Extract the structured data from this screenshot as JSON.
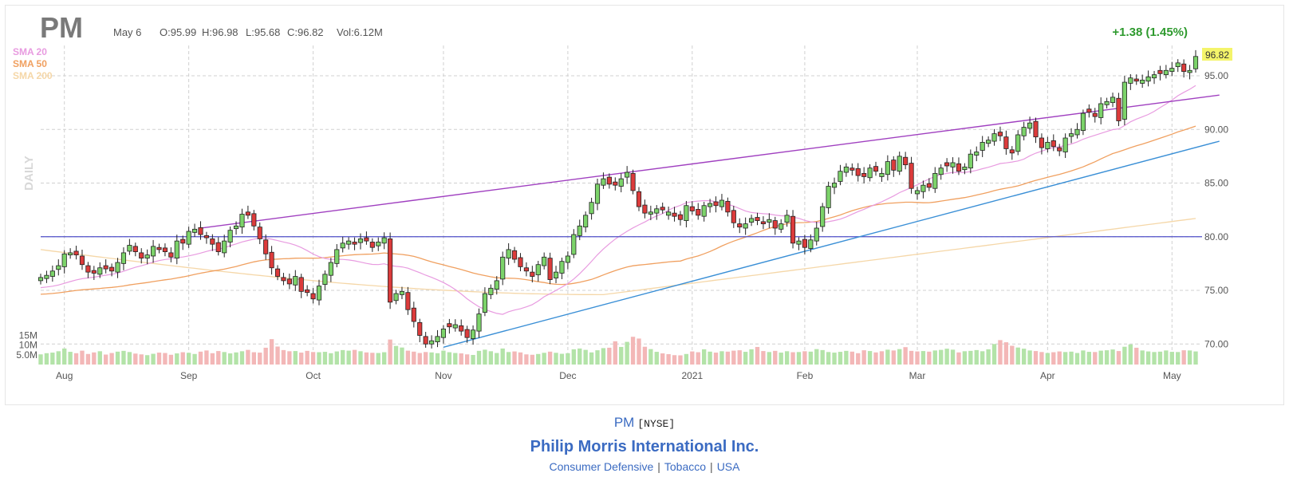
{
  "header": {
    "ticker": "PM",
    "date": "May 6",
    "open": "O:95.99",
    "high": "H:96.98",
    "low": "L:95.68",
    "close": "C:96.82",
    "volume": "Vol:6.12M",
    "change": "+1.38 (1.45%)",
    "period_label": "DAILY"
  },
  "legend": [
    {
      "label": "SMA 20",
      "color": "#e89be0"
    },
    {
      "label": "SMA 50",
      "color": "#f0a060"
    },
    {
      "label": "SMA 200",
      "color": "#f5d7a8"
    }
  ],
  "last_price_label": "96.82",
  "footer": {
    "ticker": "PM",
    "exchange": "[NYSE]",
    "company": "Philip Morris International Inc.",
    "sector": "Consumer Defensive",
    "industry": "Tobacco",
    "country": "USA"
  },
  "colors": {
    "up": "#7cd36a",
    "down": "#dc3b3b",
    "vol_up": "#b3e3a8",
    "vol_down": "#f3b7b7",
    "change": "#2e9a2e",
    "trend_upper": "#a040c0",
    "trend_lower": "#3a8fd6",
    "support": "#5050c8",
    "last_price_bg": "#f4f46a"
  },
  "chart_data": {
    "type": "candlestick",
    "price_ticks": [
      "95.00",
      "90.00",
      "85.00",
      "80.00",
      "75.00",
      "70.00"
    ],
    "price_tick_values": [
      95,
      90,
      85,
      80,
      75,
      70
    ],
    "volume_ticks": [
      "15M",
      "10M",
      "5.0M"
    ],
    "volume_tick_values": [
      15,
      10,
      5
    ],
    "x_labels": [
      {
        "label": "Aug",
        "index": 4
      },
      {
        "label": "Sep",
        "index": 25
      },
      {
        "label": "Oct",
        "index": 46
      },
      {
        "label": "Nov",
        "index": 68
      },
      {
        "label": "Dec",
        "index": 89
      },
      {
        "label": "2021",
        "index": 110
      },
      {
        "label": "Feb",
        "index": 129
      },
      {
        "label": "Mar",
        "index": 148
      },
      {
        "label": "Apr",
        "index": 170
      },
      {
        "label": "May",
        "index": 191
      }
    ],
    "support_level": 80,
    "closes": [
      76.2,
      76.4,
      76.8,
      77.3,
      78.4,
      78.5,
      78.3,
      77.4,
      76.7,
      76.6,
      77.1,
      77.0,
      76.8,
      77.6,
      78.5,
      79.2,
      78.6,
      78.0,
      78.3,
      79.1,
      78.8,
      78.6,
      78.1,
      79.6,
      79.4,
      80.5,
      80.7,
      80.2,
      79.9,
      79.3,
      78.6,
      79.6,
      80.6,
      81.0,
      82.1,
      82.0,
      81.0,
      79.8,
      78.4,
      77.1,
      76.3,
      75.9,
      75.6,
      76.3,
      74.9,
      74.8,
      74.2,
      75.4,
      76.5,
      77.6,
      78.8,
      79.4,
      79.6,
      79.3,
      79.8,
      79.6,
      79.0,
      79.5,
      79.9,
      73.9,
      74.7,
      74.9,
      73.2,
      72.1,
      70.8,
      70.0,
      70.3,
      70.7,
      71.4,
      71.6,
      71.8,
      71.2,
      70.6,
      71.3,
      72.8,
      74.7,
      75.2,
      75.9,
      78.1,
      78.8,
      77.9,
      77.2,
      76.8,
      76.3,
      77.4,
      78.1,
      76.0,
      76.7,
      77.7,
      78.2,
      80.2,
      81.0,
      82.0,
      83.2,
      84.9,
      85.4,
      84.9,
      84.8,
      85.4,
      86.0,
      84.3,
      82.8,
      82.2,
      82.3,
      82.6,
      82.5,
      82.3,
      81.9,
      81.6,
      82.9,
      82.4,
      82.0,
      82.9,
      83.1,
      82.9,
      83.4,
      82.3,
      81.3,
      80.9,
      81.2,
      81.7,
      81.5,
      81.2,
      81.6,
      80.8,
      81.2,
      82.0,
      79.4,
      79.6,
      79.0,
      79.7,
      80.8,
      82.8,
      84.7,
      85.0,
      86.1,
      86.5,
      86.2,
      85.7,
      85.6,
      86.4,
      86.1,
      85.9,
      87.0,
      86.2,
      87.5,
      86.7,
      84.5,
      84.3,
      84.8,
      84.6,
      85.9,
      86.4,
      86.6,
      86.9,
      86.1,
      86.5,
      87.7,
      87.9,
      88.8,
      89.0,
      89.6,
      89.4,
      88.2,
      87.8,
      89.5,
      90.2,
      90.6,
      89.3,
      88.3,
      88.8,
      88.4,
      88.0,
      89.2,
      89.6,
      90.0,
      91.5,
      91.6,
      91.2,
      92.4,
      92.6,
      93.0,
      90.8,
      94.4,
      94.8,
      94.5,
      94.6,
      94.9,
      95.1,
      95.2,
      95.5,
      95.7,
      96.2,
      95.4,
      95.5,
      96.8
    ],
    "volumes": [
      5.2,
      5.8,
      6.1,
      6.8,
      8.2,
      6.5,
      5.8,
      7.1,
      5.4,
      6.2,
      6.8,
      5.1,
      5.9,
      6.6,
      7.0,
      6.4,
      5.6,
      5.2,
      4.8,
      5.5,
      6.1,
      5.9,
      5.0,
      5.7,
      6.3,
      6.0,
      5.4,
      6.6,
      7.2,
      5.8,
      6.9,
      6.4,
      5.7,
      6.2,
      6.8,
      7.5,
      6.3,
      6.1,
      8.6,
      13.0,
      9.2,
      7.4,
      6.8,
      6.9,
      6.1,
      7.0,
      6.4,
      6.3,
      6.5,
      5.8,
      6.7,
      7.4,
      7.1,
      7.5,
      6.8,
      6.2,
      6.0,
      5.9,
      6.3,
      12.8,
      9.5,
      8.7,
      7.1,
      6.6,
      5.9,
      6.4,
      6.2,
      5.8,
      7.1,
      6.3,
      5.9,
      5.7,
      5.2,
      4.9,
      7.0,
      7.6,
      6.8,
      5.9,
      8.2,
      6.4,
      6.7,
      6.2,
      5.2,
      5.0,
      5.4,
      6.0,
      6.6,
      6.0,
      5.5,
      5.8,
      7.8,
      8.2,
      7.5,
      6.2,
      7.3,
      8.4,
      8.6,
      11.9,
      9.0,
      11.6,
      14.2,
      13.3,
      9.1,
      7.9,
      6.5,
      5.7,
      5.3,
      4.8,
      4.7,
      5.4,
      6.7,
      6.3,
      7.8,
      6.6,
      6.1,
      6.8,
      6.6,
      7.1,
      7.3,
      6.5,
      7.8,
      9.0,
      6.9,
      6.4,
      7.0,
      6.1,
      6.8,
      6.3,
      6.4,
      6.8,
      6.6,
      7.9,
      7.4,
      6.4,
      6.1,
      6.5,
      7.0,
      6.6,
      5.8,
      7.3,
      6.9,
      6.2,
      6.8,
      7.6,
      7.2,
      7.9,
      8.9,
      7.0,
      6.7,
      6.9,
      6.6,
      7.2,
      7.5,
      8.1,
      7.6,
      6.2,
      6.8,
      7.0,
      7.4,
      6.8,
      7.8,
      10.5,
      12.5,
      11.4,
      9.6,
      8.7,
      8.1,
      7.2,
      6.9,
      6.4,
      5.9,
      6.3,
      6.7,
      6.4,
      6.6,
      5.9,
      7.2,
      6.5,
      6.4,
      7.1,
      7.3,
      7.7,
      6.9,
      9.1,
      10.3,
      8.6,
      7.2,
      6.7,
      6.4,
      6.6,
      7.2,
      6.5,
      6.4,
      7.3,
      7.2,
      6.7,
      6.12
    ]
  }
}
